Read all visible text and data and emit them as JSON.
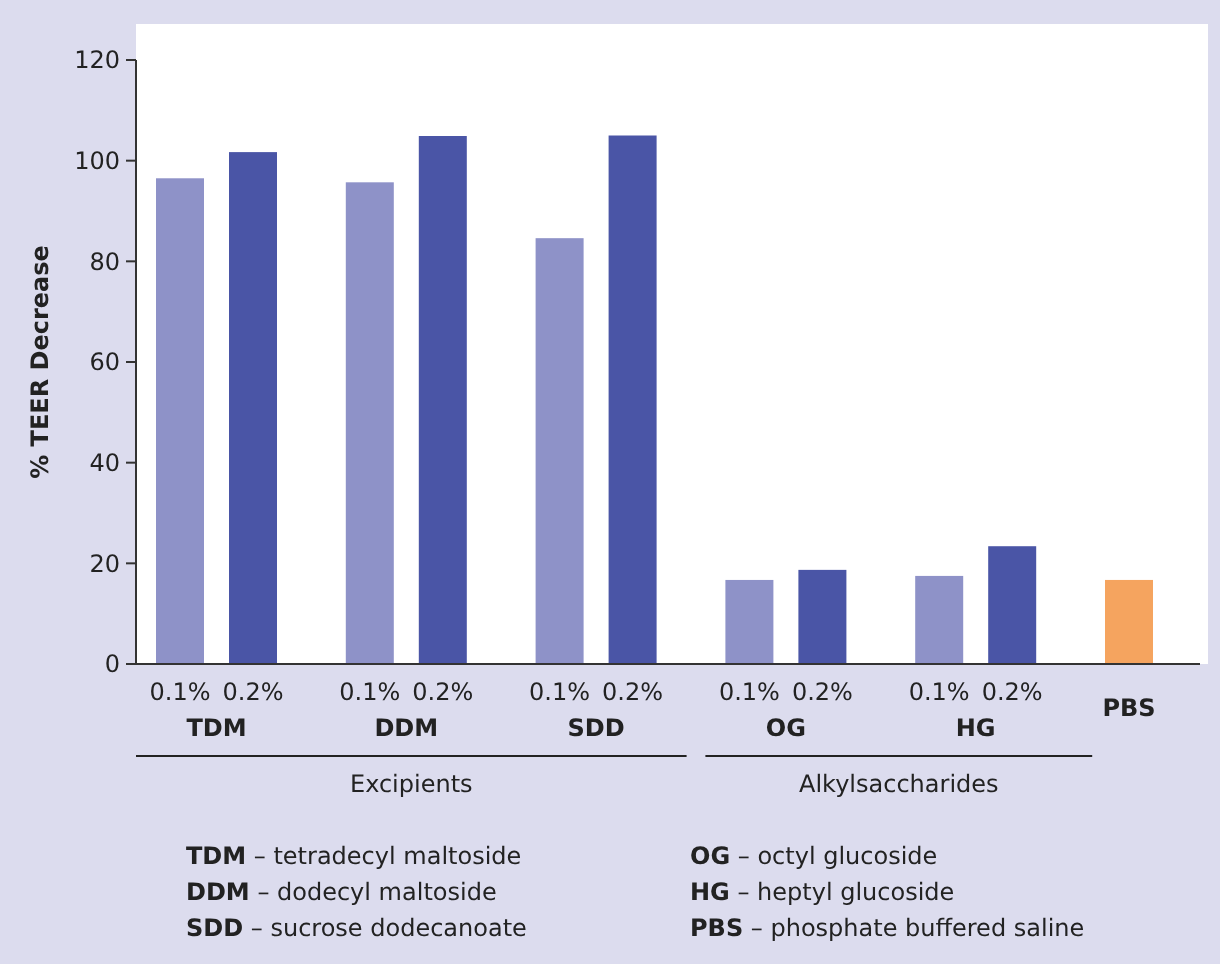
{
  "chart_data": {
    "type": "bar",
    "ylabel": "% TEER Decrease",
    "categories": [
      "0.1%",
      "0.2%",
      "0.1%",
      "0.2%",
      "0.1%",
      "0.2%",
      "0.1%",
      "0.2%",
      "0.1%",
      "0.2%",
      null
    ],
    "values": [
      96.5,
      101.7,
      95.7,
      104.9,
      84.6,
      105,
      16.7,
      18.7,
      17.5,
      23.4,
      16.7
    ],
    "colors": [
      "#8e92c8",
      "#4a55a6",
      "#8e92c8",
      "#4a55a6",
      "#8e92c8",
      "#4a55a6",
      "#8e92c8",
      "#4a55a6",
      "#8e92c8",
      "#4a55a6",
      "#f5a45f"
    ],
    "ylim": [
      0,
      120
    ],
    "yticks": [
      0,
      20,
      40,
      60,
      80,
      100,
      120
    ],
    "grid": false,
    "annotations": [
      "TDM",
      "DDM",
      "SDD",
      "OG",
      "HG",
      "PBS",
      "Excipients",
      "Alkylsaccharides",
      "TDM – tetradecyl maltoside",
      "DDM – dodecyl maltoside",
      "SDD – sucrose dodecanoate",
      "OG – octyl glucoside",
      "HG – heptyl glucoside",
      "PBS – phosphate buffered saline"
    ]
  }
}
